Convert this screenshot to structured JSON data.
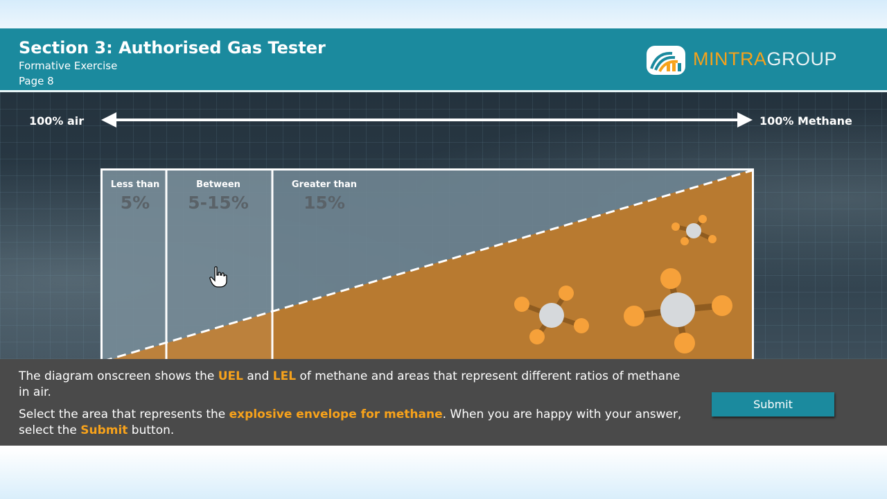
{
  "header": {
    "title": "Section 3: Authorised Gas Tester",
    "subtitle": "Formative Exercise",
    "page": "Page 8",
    "logo": {
      "part1": "MINTRA",
      "part2": "GROUP",
      "color_primary": "#f7a21b",
      "color_secondary": "#e9f2f4"
    }
  },
  "diagram": {
    "left_label": "100% air",
    "right_label": "100% Methane",
    "zones": [
      {
        "label": "Less than",
        "value": "5%"
      },
      {
        "label": "Between",
        "value": "5-15%"
      },
      {
        "label": "Greater than",
        "value": "15%"
      }
    ],
    "methane_fill_color": "#b87a30",
    "air_fill_color": "#6e8390",
    "molecule_icon": "methane-molecule-icon"
  },
  "instructions": {
    "p1_a": "The diagram onscreen shows the ",
    "p1_uel": "UEL",
    "p1_b": " and ",
    "p1_lel": "LEL",
    "p1_c": " of methane and areas that represent different ratios of methane in air.",
    "p2_a": "Select the area that represents the ",
    "p2_highlight": "explosive envelope for methane",
    "p2_b": ". When you are happy with your answer, select the ",
    "p2_submit": "Submit",
    "p2_c": " button."
  },
  "submit_label": "Submit",
  "colors": {
    "header_teal": "#1b8a9e",
    "highlight_orange": "#f7a21b",
    "panel_gray": "#4a4a4a"
  }
}
